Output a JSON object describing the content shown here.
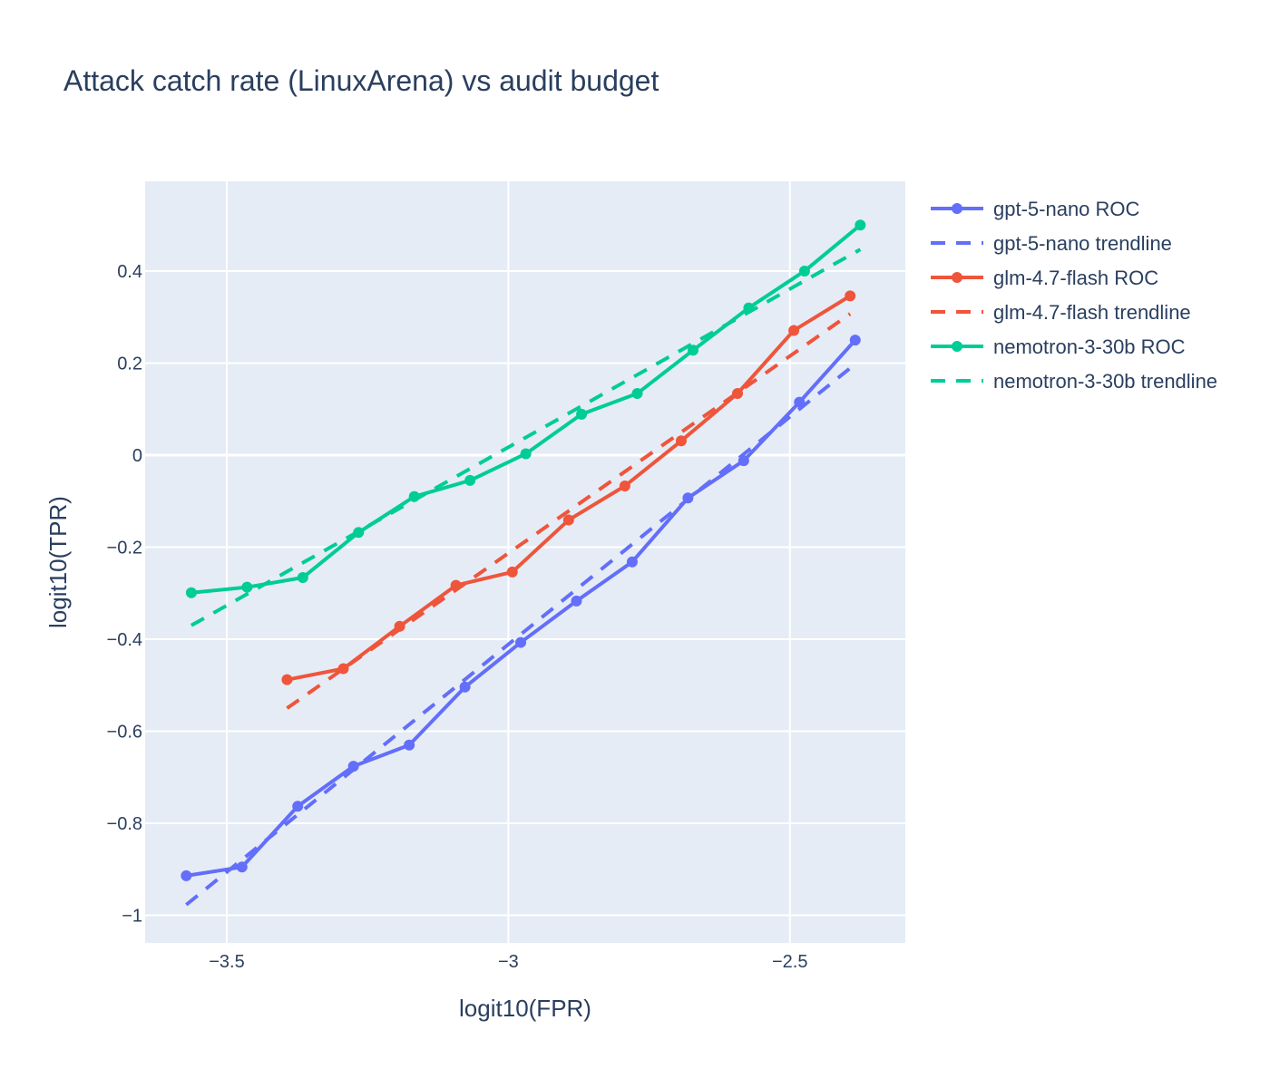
{
  "chart_data": {
    "type": "line",
    "title": "Attack catch rate (LinuxArena) vs audit budget",
    "xlabel": "logit10(FPR)",
    "ylabel": "logit10(TPR)",
    "xlim": [
      -3.645,
      -2.295
    ],
    "ylim": [
      -1.06,
      0.595
    ],
    "xticks": [
      {
        "value": -3.5,
        "label": "−3.5"
      },
      {
        "value": -3.0,
        "label": "−3"
      },
      {
        "value": -2.5,
        "label": "−2.5"
      }
    ],
    "yticks": [
      {
        "value": 0.4,
        "label": "0.4"
      },
      {
        "value": 0.2,
        "label": "0.2"
      },
      {
        "value": 0.0,
        "label": "0"
      },
      {
        "value": -0.2,
        "label": "−0.2"
      },
      {
        "value": -0.4,
        "label": "−0.4"
      },
      {
        "value": -0.6,
        "label": "−0.6"
      },
      {
        "value": -0.8,
        "label": "−0.8"
      },
      {
        "value": -1.0,
        "label": "−1"
      }
    ],
    "grid": true,
    "legend_position": "right",
    "series": [
      {
        "name": "gpt-5-nano ROC",
        "kind": "roc",
        "color": "#636efa",
        "x": [
          -3.572,
          -3.473,
          -3.374,
          -3.275,
          -3.176,
          -3.077,
          -2.978,
          -2.879,
          -2.78,
          -2.681,
          -2.582,
          -2.483,
          -2.384
        ],
        "y": [
          -0.914,
          -0.895,
          -0.763,
          -0.676,
          -0.63,
          -0.504,
          -0.407,
          -0.317,
          -0.232,
          -0.093,
          -0.012,
          0.115,
          0.25
        ]
      },
      {
        "name": "gpt-5-nano trendline",
        "kind": "trend",
        "color": "#636efa",
        "x": [
          -3.572,
          -2.384
        ],
        "y": [
          -0.977,
          0.198
        ]
      },
      {
        "name": "glm-4.7-flash ROC",
        "kind": "roc",
        "color": "#ef553b",
        "x": [
          -3.393,
          -3.293,
          -3.193,
          -3.093,
          -2.993,
          -2.893,
          -2.793,
          -2.693,
          -2.593,
          -2.493,
          -2.393
        ],
        "y": [
          -0.488,
          -0.464,
          -0.372,
          -0.283,
          -0.254,
          -0.141,
          -0.067,
          0.031,
          0.134,
          0.271,
          0.346
        ]
      },
      {
        "name": "glm-4.7-flash trendline",
        "kind": "trend",
        "color": "#ef553b",
        "x": [
          -3.393,
          -2.393
        ],
        "y": [
          -0.55,
          0.307
        ]
      },
      {
        "name": "nemotron-3-30b ROC",
        "kind": "roc",
        "color": "#00cc96",
        "x": [
          -3.563,
          -3.464,
          -3.365,
          -3.266,
          -3.167,
          -3.068,
          -2.969,
          -2.87,
          -2.771,
          -2.672,
          -2.573,
          -2.474,
          -2.375
        ],
        "y": [
          -0.299,
          -0.287,
          -0.266,
          -0.168,
          -0.09,
          -0.055,
          0.003,
          0.089,
          0.134,
          0.228,
          0.32,
          0.4,
          0.5
        ]
      },
      {
        "name": "nemotron-3-30b trendline",
        "kind": "trend",
        "color": "#00cc96",
        "x": [
          -3.563,
          -2.375
        ],
        "y": [
          -0.37,
          0.447
        ]
      }
    ]
  }
}
